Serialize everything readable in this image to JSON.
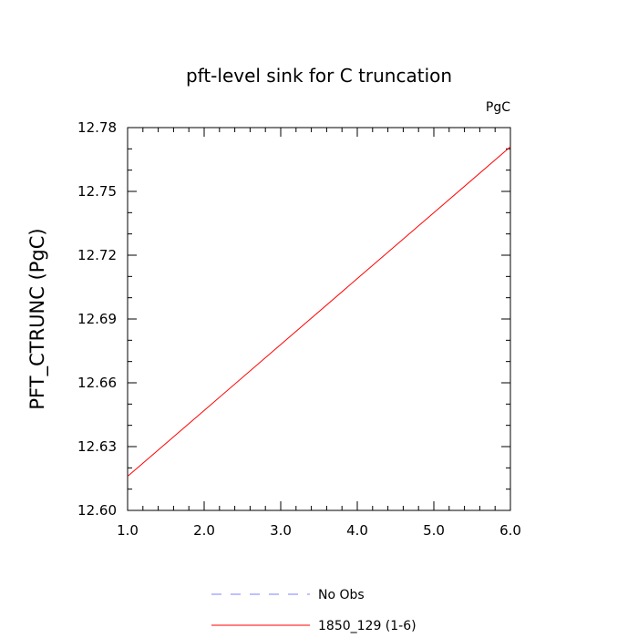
{
  "chart_data": {
    "type": "line",
    "title": "pft-level sink for C truncation",
    "units_label": "PgC",
    "xlabel": "",
    "ylabel": "PFT_CTRUNC  (PgC)",
    "xlim": [
      1.0,
      6.0
    ],
    "ylim": [
      12.6,
      12.78
    ],
    "x_ticks": [
      1.0,
      2.0,
      3.0,
      4.0,
      5.0,
      6.0
    ],
    "x_tick_labels": [
      "1.0",
      "2.0",
      "3.0",
      "4.0",
      "5.0",
      "6.0"
    ],
    "y_ticks": [
      12.6,
      12.63,
      12.66,
      12.69,
      12.72,
      12.75,
      12.78
    ],
    "y_tick_labels": [
      "12.60",
      "12.63",
      "12.66",
      "12.69",
      "12.72",
      "12.75",
      "12.78"
    ],
    "grid": false,
    "legend_position": "bottom",
    "series": [
      {
        "name": "No Obs",
        "color": "#8080ff",
        "dash": "dashed",
        "x": [],
        "y": []
      },
      {
        "name": "1850_129 (1-6)",
        "color": "#ff0000",
        "dash": "solid",
        "x": [
          1.0,
          2.0,
          3.0,
          4.0,
          5.0,
          6.0
        ],
        "y": [
          12.616,
          12.647,
          12.678,
          12.709,
          12.74,
          12.771
        ]
      }
    ]
  }
}
